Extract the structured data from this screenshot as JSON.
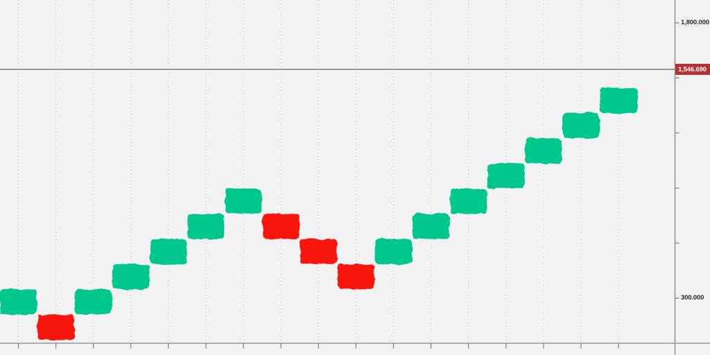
{
  "chart_data": {
    "type": "renko",
    "title": "",
    "legend": "none",
    "brick_size": 137.3,
    "current_price": 1546.69,
    "current_price_label": "1,546.690",
    "bricks": [
      {
        "dir": "up",
        "open": 210.6,
        "close": 347.9
      },
      {
        "dir": "down",
        "open": 210.6,
        "close": 73.3
      },
      {
        "dir": "up",
        "open": 210.6,
        "close": 347.9
      },
      {
        "dir": "up",
        "open": 347.9,
        "close": 485.2
      },
      {
        "dir": "up",
        "open": 485.2,
        "close": 622.5
      },
      {
        "dir": "up",
        "open": 622.5,
        "close": 759.8
      },
      {
        "dir": "up",
        "open": 759.8,
        "close": 897.1
      },
      {
        "dir": "down",
        "open": 759.8,
        "close": 622.5
      },
      {
        "dir": "down",
        "open": 622.5,
        "close": 485.2
      },
      {
        "dir": "down",
        "open": 485.2,
        "close": 347.9
      },
      {
        "dir": "up",
        "open": 485.2,
        "close": 622.5
      },
      {
        "dir": "up",
        "open": 622.5,
        "close": 759.8
      },
      {
        "dir": "up",
        "open": 759.8,
        "close": 897.1
      },
      {
        "dir": "up",
        "open": 897.1,
        "close": 1034.4
      },
      {
        "dir": "up",
        "open": 1034.4,
        "close": 1171.7
      },
      {
        "dir": "up",
        "open": 1171.7,
        "close": 1309.0
      },
      {
        "dir": "up",
        "open": 1309.0,
        "close": 1446.3
      }
    ],
    "y_axis": {
      "side": "right",
      "ticks": [
        300,
        600,
        900,
        1200,
        1500,
        1800
      ],
      "tick_labels": {
        "300": "300.000",
        "1800": "1,800.000"
      },
      "visible_range": [
        58,
        1925
      ]
    },
    "x_axis": {
      "labels": [],
      "gridlines": "dotted-vertical",
      "gridline_count": 17
    },
    "colors": {
      "up_brick": "#00c78e",
      "down_brick": "#f91710",
      "price_line": "#868686",
      "badge_bg": "#b5312f",
      "badge_text": "#ffffff",
      "axis_line": "#979797",
      "tick": "#7f7f7f",
      "grid": "#c4c4c4",
      "label_text": "#2b2b2b",
      "background": "#f2f2f2"
    }
  }
}
